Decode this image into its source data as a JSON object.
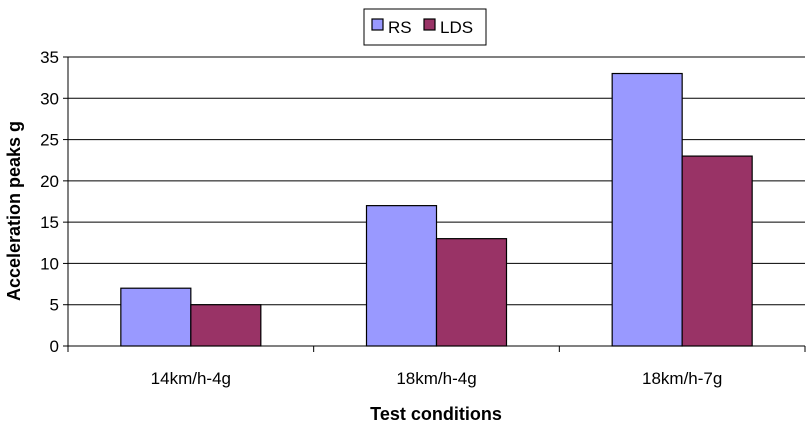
{
  "chart_data": {
    "type": "bar",
    "categories": [
      "14km/h-4g",
      "18km/h-4g",
      "18km/h-7g"
    ],
    "series": [
      {
        "name": "RS",
        "values": [
          7,
          17,
          33
        ],
        "color": "#9999FF"
      },
      {
        "name": "LDS",
        "values": [
          5,
          13,
          23
        ],
        "color": "#993366"
      }
    ],
    "title": "",
    "xlabel": "Test conditions",
    "ylabel": "Acceleration peaks g",
    "ylim": [
      0,
      35
    ],
    "yticks": [
      0,
      5,
      10,
      15,
      20,
      25,
      30,
      35
    ],
    "grid": true,
    "legend_position": "top-center"
  }
}
